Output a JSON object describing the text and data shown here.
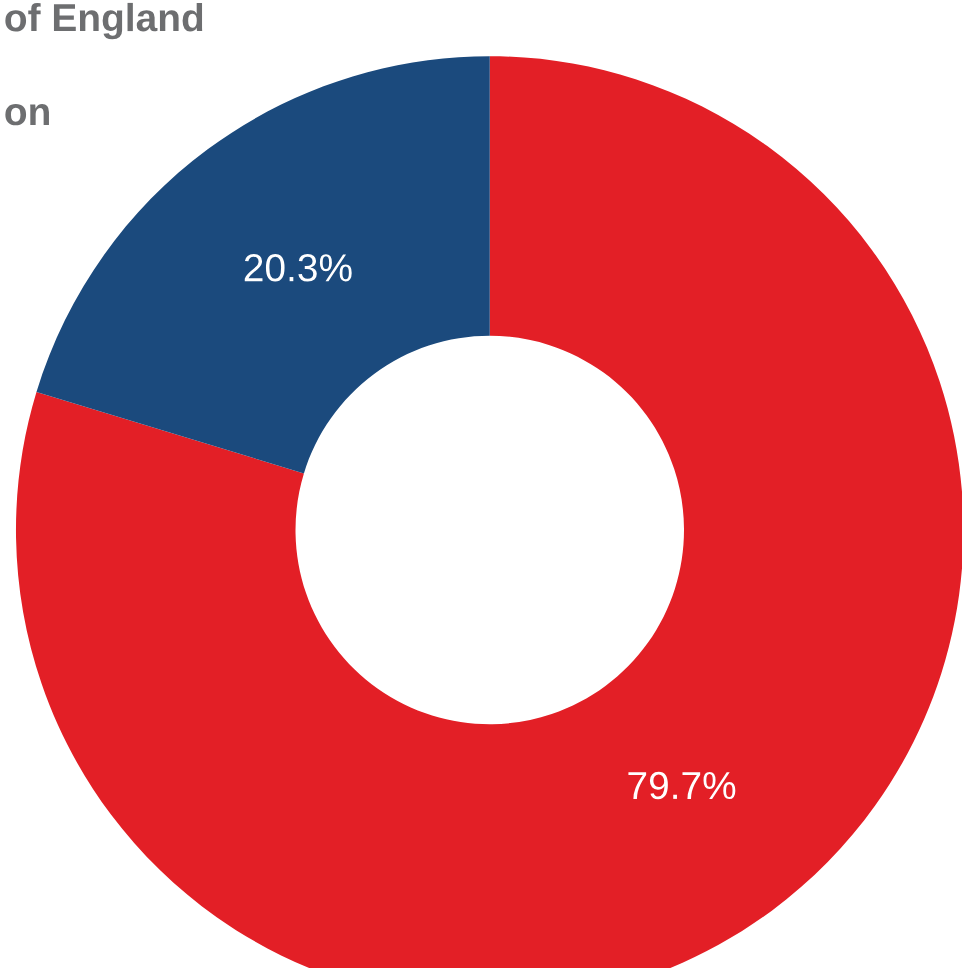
{
  "chart_data": {
    "type": "donut",
    "categories": [
      null,
      null
    ],
    "values": [
      79.7,
      20.3
    ],
    "colors": [
      "#e31f26",
      "#1b4a7d"
    ],
    "value_labels": [
      "79.7%",
      "20.3%"
    ],
    "annotations": [
      "of England",
      "on"
    ],
    "legend": false
  }
}
